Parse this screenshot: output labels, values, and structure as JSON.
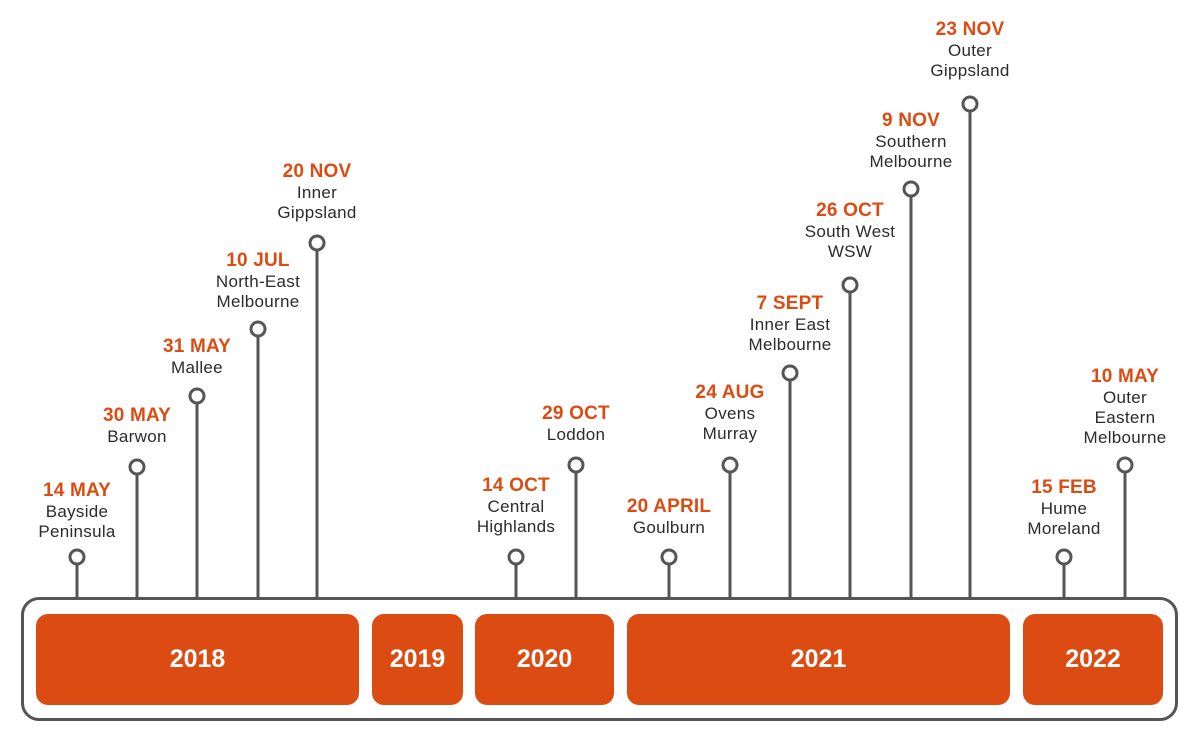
{
  "colors": {
    "accent": "#dc4c12",
    "line": "#555555",
    "text": "#2b2b2b"
  },
  "years": [
    {
      "label": "2018"
    },
    {
      "label": "2019"
    },
    {
      "label": "2020"
    },
    {
      "label": "2021"
    },
    {
      "label": "2022"
    }
  ],
  "events": [
    {
      "date": "14 MAY",
      "region": [
        "Bayside",
        "Peninsula"
      ]
    },
    {
      "date": "30 MAY",
      "region": [
        "Barwon"
      ]
    },
    {
      "date": "31 MAY",
      "region": [
        "Mallee"
      ]
    },
    {
      "date": "10 JUL",
      "region": [
        "North-East",
        "Melbourne"
      ]
    },
    {
      "date": "20 NOV",
      "region": [
        "Inner",
        "Gippsland"
      ]
    },
    {
      "date": "14 OCT",
      "region": [
        "Central",
        "Highlands"
      ]
    },
    {
      "date": "29 OCT",
      "region": [
        "Loddon"
      ]
    },
    {
      "date": "20 APRIL",
      "region": [
        "Goulburn"
      ]
    },
    {
      "date": "24 AUG",
      "region": [
        "Ovens",
        "Murray"
      ]
    },
    {
      "date": "7 SEPT",
      "region": [
        "Inner East",
        "Melbourne"
      ]
    },
    {
      "date": "26 OCT",
      "region": [
        "South West",
        "WSW"
      ]
    },
    {
      "date": "9 NOV",
      "region": [
        "Southern",
        "Melbourne"
      ]
    },
    {
      "date": "23 NOV",
      "region": [
        "Outer",
        "Gippsland"
      ]
    },
    {
      "date": "15 FEB",
      "region": [
        "Hume",
        "Moreland"
      ]
    },
    {
      "date": "10 MAY",
      "region": [
        "Outer",
        "Eastern",
        "Melbourne"
      ]
    }
  ]
}
